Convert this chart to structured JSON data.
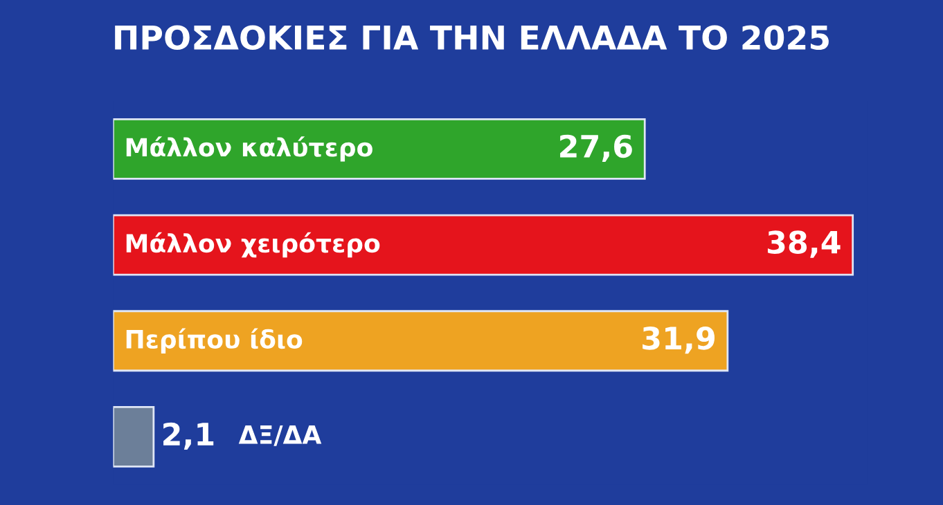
{
  "chart_data": {
    "type": "bar",
    "orientation": "horizontal",
    "title": "ΠΡΟΣΔΟΚΙΕΣ ΓΙΑ ΤΗΝ ΕΛΛΑΔΑ ΤΟ 2025",
    "categories": [
      "Μάλλον καλύτερο",
      "Μάλλον χειρότερο",
      "Περίπου ίδιο",
      "ΔΞ/ΔΑ"
    ],
    "values": [
      27.6,
      38.4,
      31.9,
      2.1
    ],
    "colors": [
      "#2fa52b",
      "#e5141c",
      "#eea322",
      "#6c7f99"
    ],
    "value_labels": [
      "27,6",
      "38,4",
      "31,9",
      "2,1"
    ]
  }
}
